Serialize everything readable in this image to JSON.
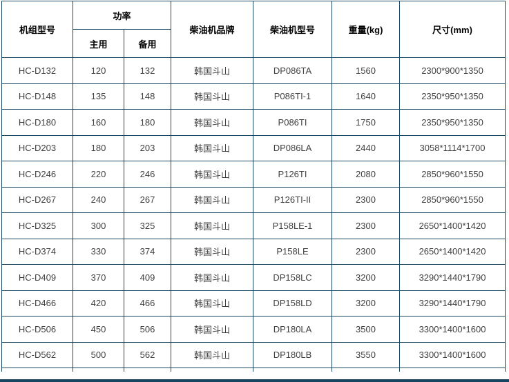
{
  "table": {
    "headers": {
      "unit_model": "机组型号",
      "power": "功率",
      "power_prime": "主用",
      "power_standby": "备用",
      "engine_brand": "柴油机品牌",
      "engine_model": "柴油机型号",
      "weight": "重量(kg)",
      "dimensions": "尺寸(mm)"
    },
    "rows": [
      [
        "HC-D132",
        "120",
        "132",
        "韩国斗山",
        "DP086TA",
        "1560",
        "2300*900*1350"
      ],
      [
        "HC-D148",
        "135",
        "148",
        "韩国斗山",
        "P086TI-1",
        "1640",
        "2350*950*1350"
      ],
      [
        "HC-D180",
        "160",
        "180",
        "韩国斗山",
        "P086TI",
        "1750",
        "2350*950*1350"
      ],
      [
        "HC-D203",
        "180",
        "203",
        "韩国斗山",
        "DP086LA",
        "2440",
        "3058*1114*1700"
      ],
      [
        "HC-D246",
        "220",
        "246",
        "韩国斗山",
        "P126TI",
        "2080",
        "2850*960*1550"
      ],
      [
        "HC-D267",
        "240",
        "267",
        "韩国斗山",
        "P126TI-II",
        "2300",
        "2850*960*1550"
      ],
      [
        "HC-D325",
        "300",
        "325",
        "韩国斗山",
        "P158LE-1",
        "2300",
        "2650*1400*1420"
      ],
      [
        "HC-D374",
        "330",
        "374",
        "韩国斗山",
        "P158LE",
        "2300",
        "2650*1400*1420"
      ],
      [
        "HC-D409",
        "370",
        "409",
        "韩国斗山",
        "DP158LC",
        "3200",
        "3290*1440*1790"
      ],
      [
        "HC-D466",
        "420",
        "466",
        "韩国斗山",
        "DP158LD",
        "3200",
        "3290*1440*1790"
      ],
      [
        "HC-D506",
        "450",
        "506",
        "韩国斗山",
        "DP180LA",
        "3500",
        "3300*1400*1600"
      ],
      [
        "HC-D562",
        "500",
        "562",
        "韩国斗山",
        "DP180LB",
        "3550",
        "3300*1400*1600"
      ]
    ],
    "colors": {
      "border": "#17455f",
      "header_text": "#000000",
      "cell_text": "#3f3f3f",
      "bottom_bar": "#17455f",
      "page_background": "#ffffff"
    }
  }
}
